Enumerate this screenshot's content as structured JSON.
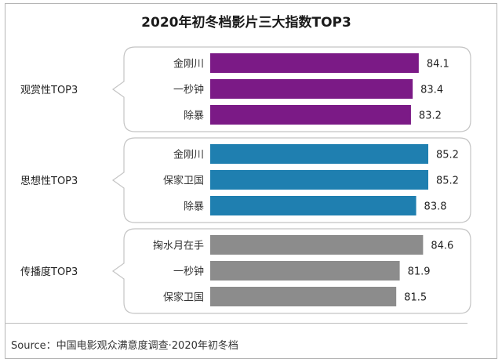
{
  "title": "2020年初冬档影片三大指数TOP3",
  "source": "Source：中国电影观众满意度调查·2020年初冬档",
  "chart_data": [
    {
      "type": "bar",
      "orientation": "horizontal",
      "group": "观赏性TOP3",
      "color": "#7b1a86",
      "categories": [
        "金刚川",
        "一秒钟",
        "除暴"
      ],
      "values": [
        84.1,
        83.4,
        83.2
      ]
    },
    {
      "type": "bar",
      "orientation": "horizontal",
      "group": "思想性TOP3",
      "color": "#1f7fb0",
      "categories": [
        "金刚川",
        "保家卫国",
        "除暴"
      ],
      "values": [
        85.2,
        85.2,
        83.8
      ]
    },
    {
      "type": "bar",
      "orientation": "horizontal",
      "group": "传播度TOP3",
      "color": "#8c8c8c",
      "categories": [
        "掬水月在手",
        "一秒钟",
        "保家卫国"
      ],
      "values": [
        84.6,
        81.9,
        81.5
      ]
    }
  ]
}
